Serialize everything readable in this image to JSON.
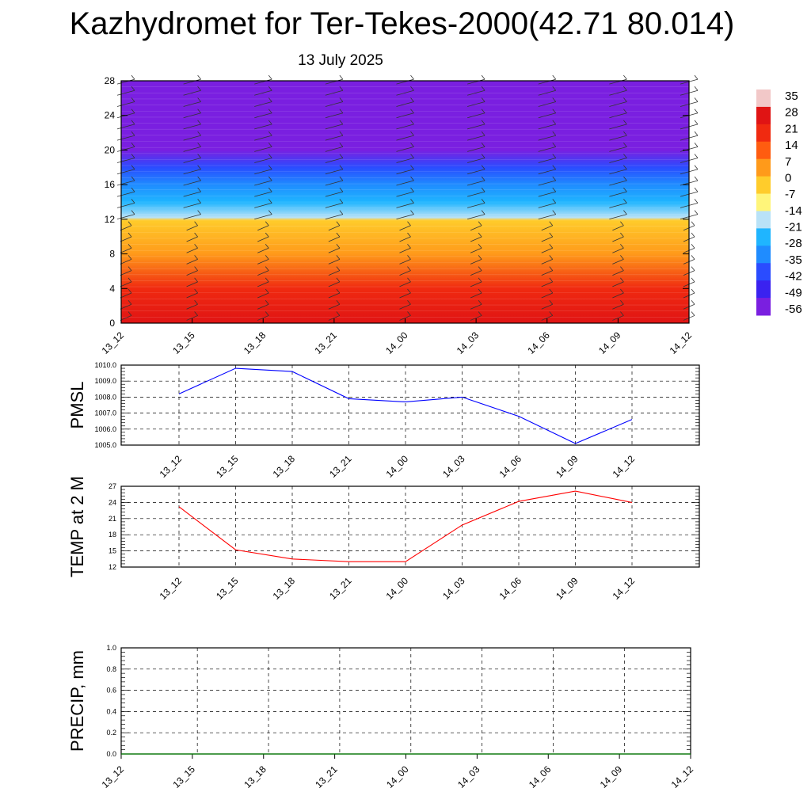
{
  "header": {
    "title": "Kazhydromet for Ter-Tekes-2000(42.71 80.014)",
    "date": "13 July 2025"
  },
  "chart_data": [
    {
      "type": "heatmap",
      "name": "temperature-profile",
      "x": [
        "13_12",
        "13_15",
        "13_18",
        "13_21",
        "14_00",
        "14_03",
        "14_06",
        "14_09",
        "14_12"
      ],
      "ylim": [
        0,
        28
      ],
      "yticks": [
        0,
        4,
        8,
        12,
        16,
        20,
        24,
        28
      ],
      "colorbar_levels": [
        35,
        28,
        21,
        14,
        7,
        0,
        -7,
        -14,
        -21,
        -28,
        -35,
        -42,
        -49,
        -56
      ],
      "colors": [
        "#7a1fe0",
        "#3a22f0",
        "#2a4cff",
        "#1f8cff",
        "#1fb5ff",
        "#b9e2f7",
        "#fff57a",
        "#ffcc2b",
        "#ff9a1a",
        "#ff5c10",
        "#f02a10",
        "#e01414",
        "#f2c8c8"
      ],
      "profile_by_height": [
        {
          "h": 0,
          "t": 24
        },
        {
          "h": 4,
          "t": 19
        },
        {
          "h": 8,
          "t": 5
        },
        {
          "h": 11.9,
          "t": -7
        },
        {
          "h": 12.2,
          "t": -16
        },
        {
          "h": 14,
          "t": -24
        },
        {
          "h": 16,
          "t": -30
        },
        {
          "h": 18,
          "t": -42
        },
        {
          "h": 20,
          "t": -53
        },
        {
          "h": 22,
          "t": -55
        },
        {
          "h": 28,
          "t": -58
        }
      ]
    },
    {
      "type": "line",
      "name": "pmsl",
      "ylabel": "PMSL",
      "x": [
        "13_12",
        "13_15",
        "13_18",
        "13_21",
        "14_00",
        "14_03",
        "14_06",
        "14_09",
        "14_12"
      ],
      "values": [
        1008.2,
        1009.8,
        1009.6,
        1007.9,
        1007.7,
        1008.0,
        1006.8,
        1005.1,
        1006.6
      ],
      "ylim": [
        1005.0,
        1010.0
      ],
      "yticks": [
        "1005.0",
        "1006.0",
        "1007.0",
        "1008.0",
        "1009.0",
        "1010.0"
      ],
      "color": "#0000ff"
    },
    {
      "type": "line",
      "name": "temp2m",
      "ylabel": "TEMP at 2 M",
      "x": [
        "13_12",
        "13_15",
        "13_18",
        "13_21",
        "14_00",
        "14_03",
        "14_06",
        "14_09",
        "14_12"
      ],
      "values": [
        23.2,
        15.2,
        13.5,
        13.0,
        13.0,
        19.8,
        24.2,
        26.1,
        24.0
      ],
      "ylim": [
        12,
        27
      ],
      "yticks": [
        "12",
        "15",
        "18",
        "21",
        "24",
        "27"
      ],
      "color": "#ff0000"
    },
    {
      "type": "line",
      "name": "precip",
      "ylabel": "PRECIP, mm",
      "x": [
        "13_12",
        "13_15",
        "13_18",
        "13_21",
        "14_00",
        "14_03",
        "14_06",
        "14_09",
        "14_12"
      ],
      "values": [
        0,
        0,
        0,
        0,
        0,
        0,
        0,
        0,
        0
      ],
      "ylim": [
        0.0,
        1.0
      ],
      "yticks": [
        "0.0",
        "0.2",
        "0.4",
        "0.6",
        "0.8",
        "1.0"
      ],
      "color": "#008000"
    }
  ]
}
